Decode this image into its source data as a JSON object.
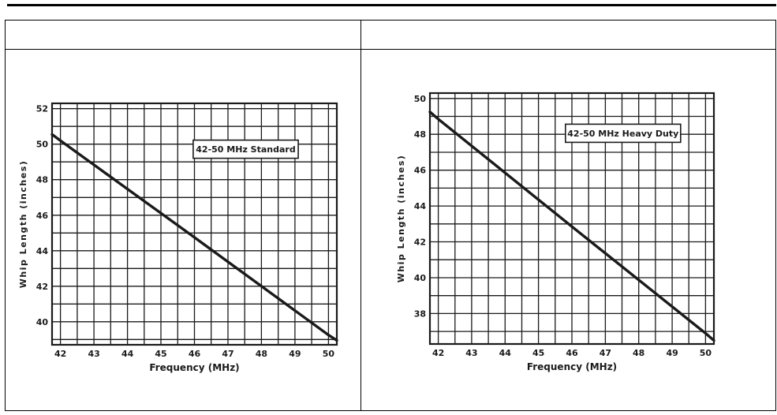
{
  "page": {
    "background": "#ffffff",
    "ink": "#1a1a1a"
  },
  "table": {
    "header_left": "",
    "header_right": ""
  },
  "chart_data": [
    {
      "type": "line",
      "title": "42-50 MHz Standard",
      "box_label": "42-50 MHz Standard",
      "xlabel": "Frequency (MHz)",
      "ylabel": "Whip Length (inches)",
      "xlim": [
        41.75,
        50.25
      ],
      "ylim": [
        38.7,
        52.3
      ],
      "x_ticks": [
        42,
        43,
        44,
        45,
        46,
        47,
        48,
        49,
        50
      ],
      "y_ticks": [
        40,
        42,
        44,
        46,
        48,
        50,
        52
      ],
      "x_grid_step": 0.5,
      "y_grid_step": 1,
      "grid": true,
      "legend_position": "upper-right-box",
      "series": [
        {
          "name": "whip-length-standard",
          "points": [
            [
              41.75,
              50.55
            ],
            [
              42,
              50.2
            ],
            [
              46,
              44.75
            ],
            [
              50,
              39.25
            ],
            [
              50.25,
              38.95
            ]
          ]
        }
      ],
      "label_pos": {
        "fx": 0.68,
        "fy": 0.19
      }
    },
    {
      "type": "line",
      "title": "42-50 MHz Heavy Duty",
      "box_label": "42-50 MHz Heavy Duty",
      "xlabel": "Frequency (MHz)",
      "ylabel": "Whip Length (inches)",
      "xlim": [
        41.75,
        50.25
      ],
      "ylim": [
        36.3,
        50.3
      ],
      "x_ticks": [
        42,
        43,
        44,
        45,
        46,
        47,
        48,
        49,
        50
      ],
      "y_ticks": [
        38,
        40,
        42,
        44,
        46,
        48,
        50
      ],
      "x_grid_step": 0.5,
      "y_grid_step": 1,
      "grid": true,
      "legend_position": "upper-right-box",
      "series": [
        {
          "name": "whip-length-heavy-duty",
          "points": [
            [
              41.75,
              49.25
            ],
            [
              42,
              48.85
            ],
            [
              46,
              42.85
            ],
            [
              50,
              36.9
            ],
            [
              50.25,
              36.5
            ]
          ]
        }
      ],
      "label_pos": {
        "fx": 0.68,
        "fy": 0.16
      }
    }
  ]
}
